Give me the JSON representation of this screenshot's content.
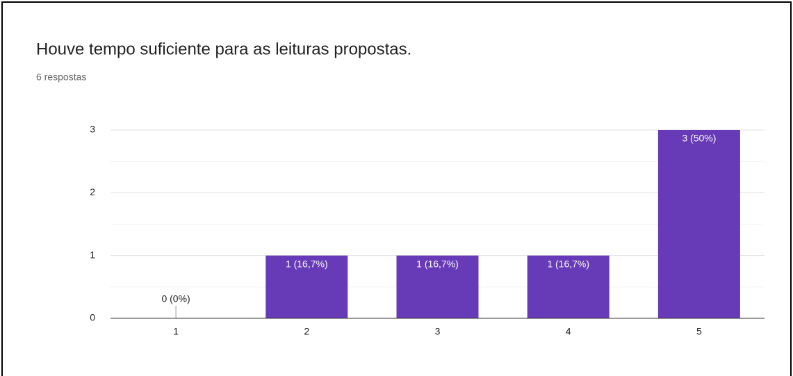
{
  "chart_data": {
    "type": "bar",
    "title": "Houve tempo suficiente para as leituras propostas.",
    "subtitle": "6 respostas",
    "categories": [
      "1",
      "2",
      "3",
      "4",
      "5"
    ],
    "values": [
      0,
      1,
      1,
      1,
      3
    ],
    "value_labels": [
      "0 (0%)",
      "1 (16,7%)",
      "1 (16,7%)",
      "1 (16,7%)",
      "3 (50%)"
    ],
    "color": "#673ab7",
    "ylim": [
      0,
      3
    ],
    "yticks": [
      0,
      1,
      2,
      3
    ],
    "grid": true
  }
}
